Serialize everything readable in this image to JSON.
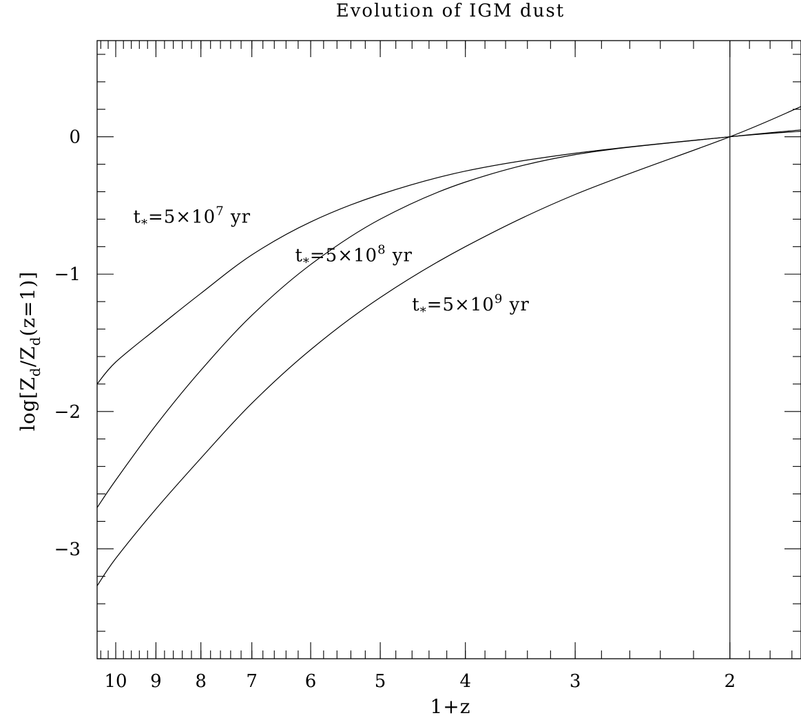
{
  "chart_data": {
    "type": "line",
    "title": "Evolution of IGM dust",
    "xlabel": "1+z",
    "ylabel_parts": {
      "lead": "log[Z",
      "sub1": "d",
      "mid": "/Z",
      "sub2": "d",
      "tail": "(z=1)]"
    },
    "x_scale": "log",
    "x_direction": "decreasing",
    "xlim": [
      10.5,
      1.66
    ],
    "ylim": [
      -3.8,
      0.7
    ],
    "x_ticks": [
      10,
      9,
      8,
      7,
      6,
      5,
      4,
      3,
      2
    ],
    "x_tick_labels": [
      "10",
      "9",
      "8",
      "7",
      "6",
      "5",
      "4",
      "3",
      "2"
    ],
    "y_ticks": [
      0,
      -1,
      -2,
      -3
    ],
    "y_tick_labels": [
      "0",
      "−1",
      "−2",
      "−3"
    ],
    "reference_line": {
      "orientation": "vertical",
      "x": 2
    },
    "series": [
      {
        "label_parts": {
          "t": "t",
          "star": "*",
          "pre": "=5×10",
          "exp": "7",
          "unit": " yr"
        },
        "label_anchor": {
          "x": 9.55,
          "y": -0.58
        },
        "points": [
          [
            10.5,
            -1.8
          ],
          [
            10,
            -1.64
          ],
          [
            9,
            -1.4
          ],
          [
            8,
            -1.14
          ],
          [
            7,
            -0.86
          ],
          [
            6,
            -0.62
          ],
          [
            5,
            -0.42
          ],
          [
            4,
            -0.25
          ],
          [
            3,
            -0.12
          ],
          [
            2,
            0.0
          ],
          [
            1.66,
            0.04
          ]
        ]
      },
      {
        "label_parts": {
          "t": "t",
          "star": "*",
          "pre": "=5×10",
          "exp": "8",
          "unit": " yr"
        },
        "label_anchor": {
          "x": 6.25,
          "y": -0.86
        },
        "points": [
          [
            10.5,
            -2.7
          ],
          [
            10,
            -2.5
          ],
          [
            9,
            -2.1
          ],
          [
            8,
            -1.7
          ],
          [
            7,
            -1.3
          ],
          [
            6,
            -0.93
          ],
          [
            5,
            -0.6
          ],
          [
            4,
            -0.33
          ],
          [
            3,
            -0.13
          ],
          [
            2,
            0.0
          ],
          [
            1.66,
            0.05
          ]
        ]
      },
      {
        "label_parts": {
          "t": "t",
          "star": "*",
          "pre": "=5×10",
          "exp": "9",
          "unit": " yr"
        },
        "label_anchor": {
          "x": 4.6,
          "y": -1.22
        },
        "points": [
          [
            10.5,
            -3.27
          ],
          [
            10,
            -3.07
          ],
          [
            9,
            -2.71
          ],
          [
            8,
            -2.34
          ],
          [
            7,
            -1.94
          ],
          [
            6,
            -1.55
          ],
          [
            5,
            -1.17
          ],
          [
            4,
            -0.8
          ],
          [
            3,
            -0.42
          ],
          [
            2,
            0.0
          ],
          [
            1.66,
            0.22
          ]
        ]
      }
    ]
  }
}
